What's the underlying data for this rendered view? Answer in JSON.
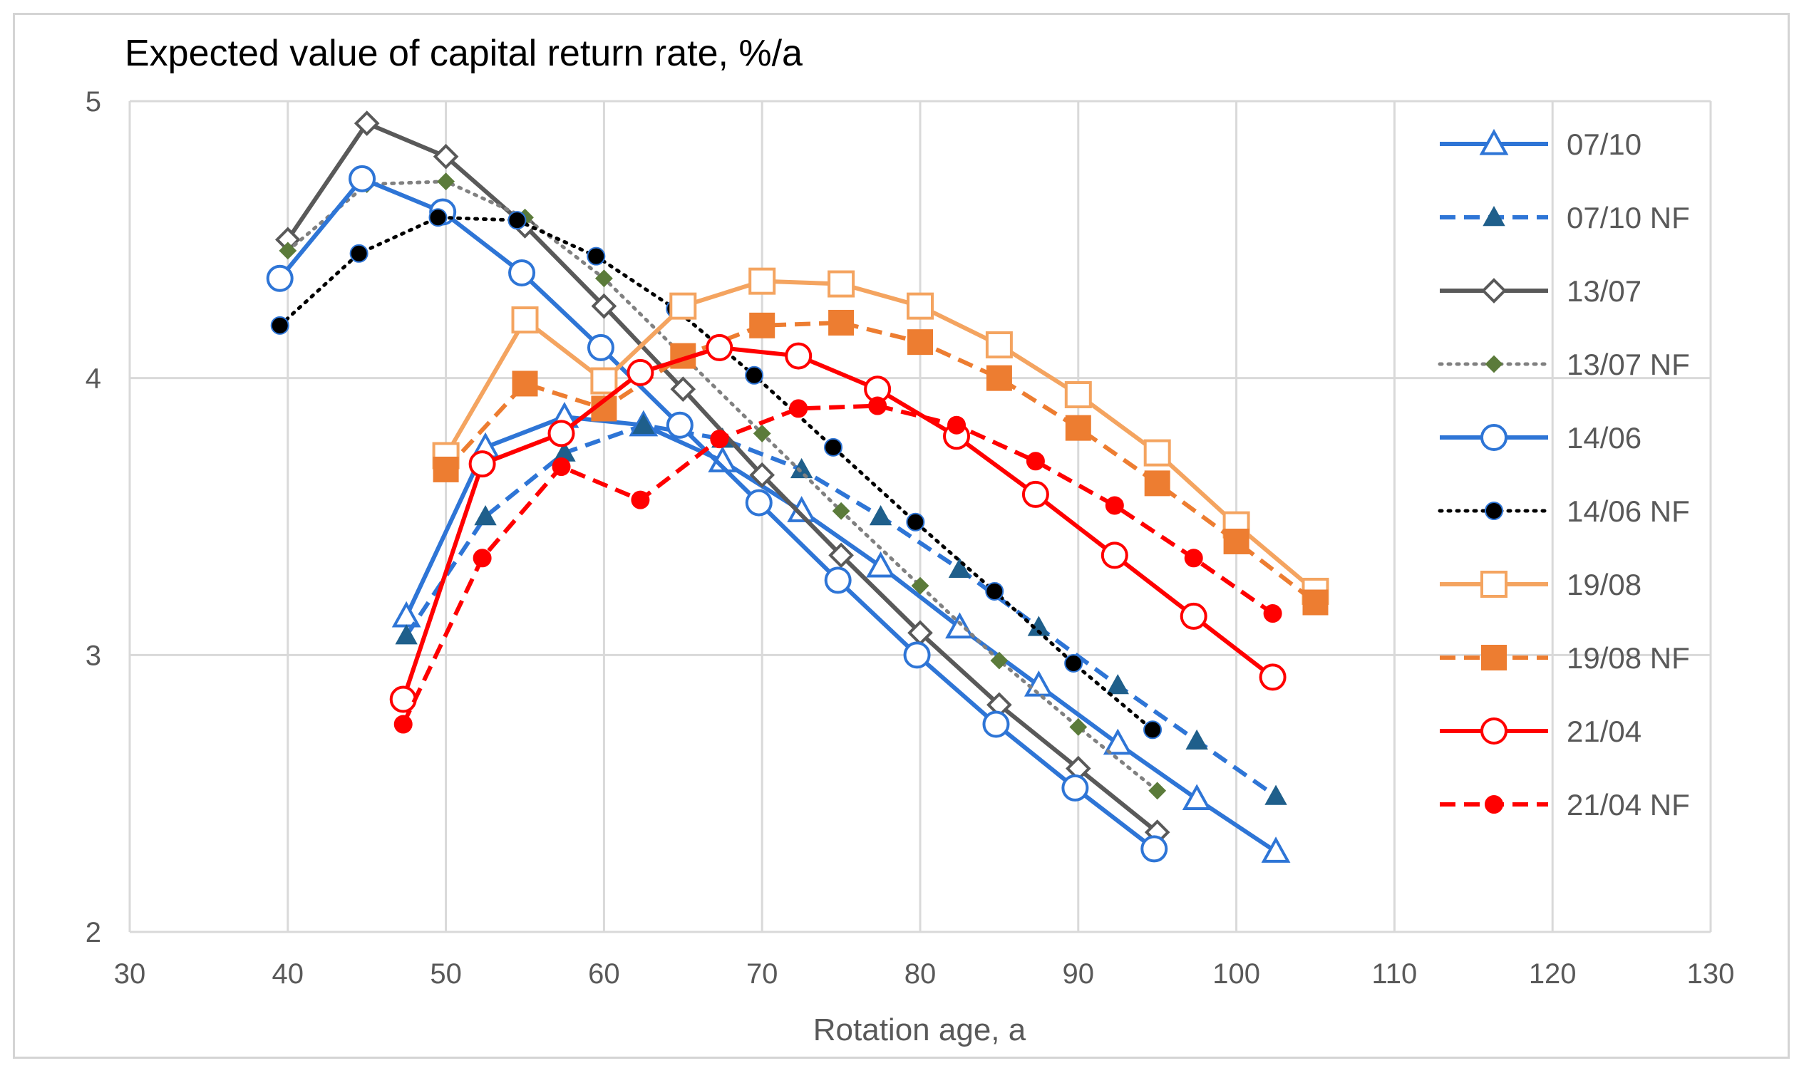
{
  "chart_data": {
    "type": "line",
    "title": "Expected value of capital return rate,  %/a",
    "xlabel": "Rotation age, a",
    "ylabel": "",
    "xlim": [
      30,
      130
    ],
    "ylim": [
      2,
      5
    ],
    "xticks": [
      "30",
      "40",
      "50",
      "60",
      "70",
      "80",
      "90",
      "100",
      "110",
      "120",
      "130"
    ],
    "yticks": [
      "2",
      "3",
      "4",
      "5"
    ],
    "grid": true,
    "legend_position": "right",
    "series": [
      {
        "name": "07/10",
        "color": "#2E75D6",
        "dash": "solid",
        "marker": "triangle",
        "filled": false,
        "x": [
          47.5,
          52.5,
          57.5,
          62.5,
          67.5,
          72.5,
          77.5,
          82.5,
          87.5,
          92.5,
          97.5,
          102.5
        ],
        "y": [
          3.14,
          3.75,
          3.86,
          3.83,
          3.7,
          3.52,
          3.32,
          3.1,
          2.89,
          2.68,
          2.48,
          2.29
        ]
      },
      {
        "name": "07/10 NF",
        "color": "#2E75D6",
        "dash": "dashed",
        "marker": "triangle",
        "filled": true,
        "markerColor": "#1F5F8B",
        "x": [
          47.5,
          52.5,
          57.5,
          62.5,
          67.5,
          72.5,
          77.5,
          82.5,
          87.5,
          92.5,
          97.5,
          102.5
        ],
        "y": [
          3.07,
          3.5,
          3.73,
          3.83,
          3.78,
          3.67,
          3.5,
          3.31,
          3.1,
          2.89,
          2.69,
          2.49
        ]
      },
      {
        "name": "13/07",
        "color": "#595959",
        "dash": "solid",
        "marker": "diamond",
        "filled": false,
        "x": [
          40,
          45,
          50,
          55,
          60,
          65,
          70,
          75,
          80,
          85,
          90,
          95
        ],
        "y": [
          4.5,
          4.92,
          4.8,
          4.55,
          4.26,
          3.96,
          3.65,
          3.36,
          3.08,
          2.82,
          2.59,
          2.36
        ]
      },
      {
        "name": "13/07 NF",
        "color": "#808080",
        "dash": "dotted",
        "marker": "diamond",
        "filled": true,
        "markerColor": "#5B7B3A",
        "x": [
          40,
          45,
          50,
          55,
          60,
          65,
          70,
          75,
          80,
          85,
          90,
          95
        ],
        "y": [
          4.46,
          4.7,
          4.71,
          4.58,
          4.36,
          4.08,
          3.8,
          3.52,
          3.25,
          2.98,
          2.74,
          2.51
        ]
      },
      {
        "name": "14/06",
        "color": "#2E75D6",
        "dash": "solid",
        "marker": "circle",
        "filled": false,
        "x": [
          39.5,
          44.7,
          49.8,
          54.8,
          59.8,
          64.8,
          69.8,
          74.8,
          79.8,
          84.8,
          89.8,
          94.8
        ],
        "y": [
          4.36,
          4.72,
          4.6,
          4.38,
          4.11,
          3.83,
          3.55,
          3.27,
          3.0,
          2.75,
          2.52,
          2.3
        ]
      },
      {
        "name": "14/06 NF",
        "color": "#000000",
        "dash": "dotted",
        "marker": "circle",
        "filled": true,
        "markerColor": "#000000",
        "x": [
          39.5,
          44.5,
          49.5,
          54.5,
          59.5,
          64.5,
          69.5,
          74.5,
          79.7,
          84.7,
          89.7,
          94.7
        ],
        "y": [
          4.19,
          4.45,
          4.58,
          4.57,
          4.44,
          4.25,
          4.01,
          3.75,
          3.48,
          3.23,
          2.97,
          2.73
        ]
      },
      {
        "name": "19/08",
        "color": "#F4A460",
        "dash": "solid",
        "marker": "square",
        "filled": false,
        "x": [
          50,
          55,
          60,
          65,
          70,
          75,
          80,
          85,
          90,
          95,
          100,
          105
        ],
        "y": [
          3.72,
          4.21,
          3.99,
          4.26,
          4.35,
          4.34,
          4.26,
          4.12,
          3.94,
          3.73,
          3.47,
          3.23
        ]
      },
      {
        "name": "19/08 NF",
        "color": "#ED7D31",
        "dash": "dashed",
        "marker": "square",
        "filled": true,
        "markerColor": "#ED7D31",
        "x": [
          50,
          55,
          60,
          65,
          70,
          75,
          80,
          85,
          90,
          95,
          100,
          105
        ],
        "y": [
          3.67,
          3.98,
          3.89,
          4.08,
          4.19,
          4.2,
          4.13,
          4.0,
          3.82,
          3.62,
          3.41,
          3.19
        ]
      },
      {
        "name": "21/04",
        "color": "#FF0000",
        "dash": "solid",
        "marker": "circle",
        "filled": false,
        "x": [
          47.3,
          52.3,
          57.3,
          62.3,
          67.3,
          72.3,
          77.3,
          82.3,
          87.3,
          92.3,
          97.3,
          102.3
        ],
        "y": [
          2.84,
          3.69,
          3.8,
          4.02,
          4.11,
          4.08,
          3.96,
          3.79,
          3.58,
          3.36,
          3.14,
          2.92
        ]
      },
      {
        "name": "21/04 NF",
        "color": "#FF0000",
        "dash": "dashed",
        "marker": "circle",
        "filled": true,
        "markerColor": "#FF0000",
        "x": [
          47.3,
          52.3,
          57.3,
          62.3,
          67.3,
          72.3,
          77.3,
          82.3,
          87.3,
          92.3,
          97.3,
          102.3
        ],
        "y": [
          2.75,
          3.35,
          3.68,
          3.56,
          3.78,
          3.89,
          3.9,
          3.83,
          3.7,
          3.54,
          3.35,
          3.15
        ]
      }
    ]
  }
}
